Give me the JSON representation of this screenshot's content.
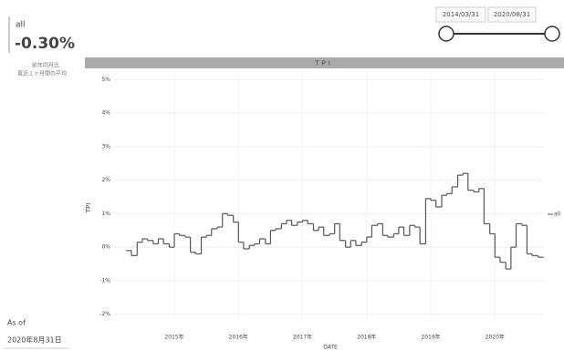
{
  "summary": {
    "label": "all",
    "value": "-0.30%",
    "note1": "前年同月比",
    "note2": "直近１ヶ月間の平均"
  },
  "as_of": {
    "label": "As of",
    "date": "2020年8月31日"
  },
  "date_range": {
    "start": "2014/03/31",
    "end": "2020/08/31"
  },
  "chart_data": {
    "type": "line",
    "step": true,
    "title": "TPI",
    "x_label": "DATE",
    "y_label": "TPI",
    "x": [
      2014.25,
      2014.33,
      2014.42,
      2014.5,
      2014.58,
      2014.67,
      2014.75,
      2014.83,
      2014.92,
      2015.0,
      2015.08,
      2015.17,
      2015.25,
      2015.33,
      2015.42,
      2015.5,
      2015.58,
      2015.67,
      2015.75,
      2015.83,
      2015.92,
      2016.0,
      2016.08,
      2016.17,
      2016.25,
      2016.33,
      2016.42,
      2016.5,
      2016.58,
      2016.67,
      2016.75,
      2016.83,
      2016.92,
      2017.0,
      2017.08,
      2017.17,
      2017.25,
      2017.33,
      2017.42,
      2017.5,
      2017.58,
      2017.67,
      2017.75,
      2017.83,
      2017.92,
      2018.0,
      2018.08,
      2018.17,
      2018.25,
      2018.33,
      2018.42,
      2018.5,
      2018.58,
      2018.67,
      2018.75,
      2018.83,
      2018.92,
      2019.0,
      2019.08,
      2019.17,
      2019.25,
      2019.33,
      2019.42,
      2019.5,
      2019.58,
      2019.67,
      2019.75,
      2019.83,
      2019.92,
      2020.0,
      2020.08,
      2020.17,
      2020.25,
      2020.33,
      2020.42,
      2020.5,
      2020.58,
      2020.67
    ],
    "series": [
      {
        "name": "all",
        "color": "#555555",
        "values": [
          -0.1,
          -0.25,
          0.15,
          0.25,
          0.2,
          0.1,
          0.25,
          0.1,
          0.0,
          0.4,
          0.35,
          0.3,
          -0.15,
          -0.2,
          0.3,
          0.35,
          0.55,
          0.6,
          1.0,
          0.95,
          0.75,
          0.15,
          -0.05,
          0.05,
          0.1,
          0.25,
          0.1,
          0.5,
          0.55,
          0.7,
          0.8,
          0.65,
          0.75,
          0.8,
          0.7,
          0.5,
          0.6,
          0.35,
          0.4,
          0.7,
          0.2,
          0.0,
          0.2,
          0.05,
          0.15,
          0.3,
          0.65,
          0.7,
          0.35,
          0.3,
          0.4,
          0.6,
          0.35,
          0.65,
          0.6,
          0.1,
          1.45,
          1.4,
          1.2,
          1.55,
          1.6,
          1.8,
          2.15,
          2.2,
          1.7,
          1.65,
          1.75,
          0.7,
          0.4,
          -0.3,
          -0.45,
          -0.65,
          0.0,
          0.7,
          0.65,
          -0.2,
          -0.25,
          -0.3
        ]
      }
    ],
    "xlim": [
      2014.06,
      2020.75
    ],
    "xticks": [
      {
        "value": 2015,
        "label": "2015年"
      },
      {
        "value": 2016,
        "label": "2016年"
      },
      {
        "value": 2017,
        "label": "2017年"
      },
      {
        "value": 2018,
        "label": "2018年"
      },
      {
        "value": 2019,
        "label": "2019年"
      },
      {
        "value": 2020,
        "label": "2020年"
      }
    ],
    "ylim": [
      -2.2,
      5.2
    ],
    "yticks": [
      {
        "value": -2,
        "label": "-2%"
      },
      {
        "value": -1,
        "label": "-1%"
      },
      {
        "value": 0,
        "label": "0%"
      },
      {
        "value": 1,
        "label": "1%"
      },
      {
        "value": 2,
        "label": "2%"
      },
      {
        "value": 3,
        "label": "3%"
      },
      {
        "value": 4,
        "label": "4%"
      },
      {
        "value": 5,
        "label": "5%"
      }
    ],
    "grid": true,
    "legend": "right"
  }
}
